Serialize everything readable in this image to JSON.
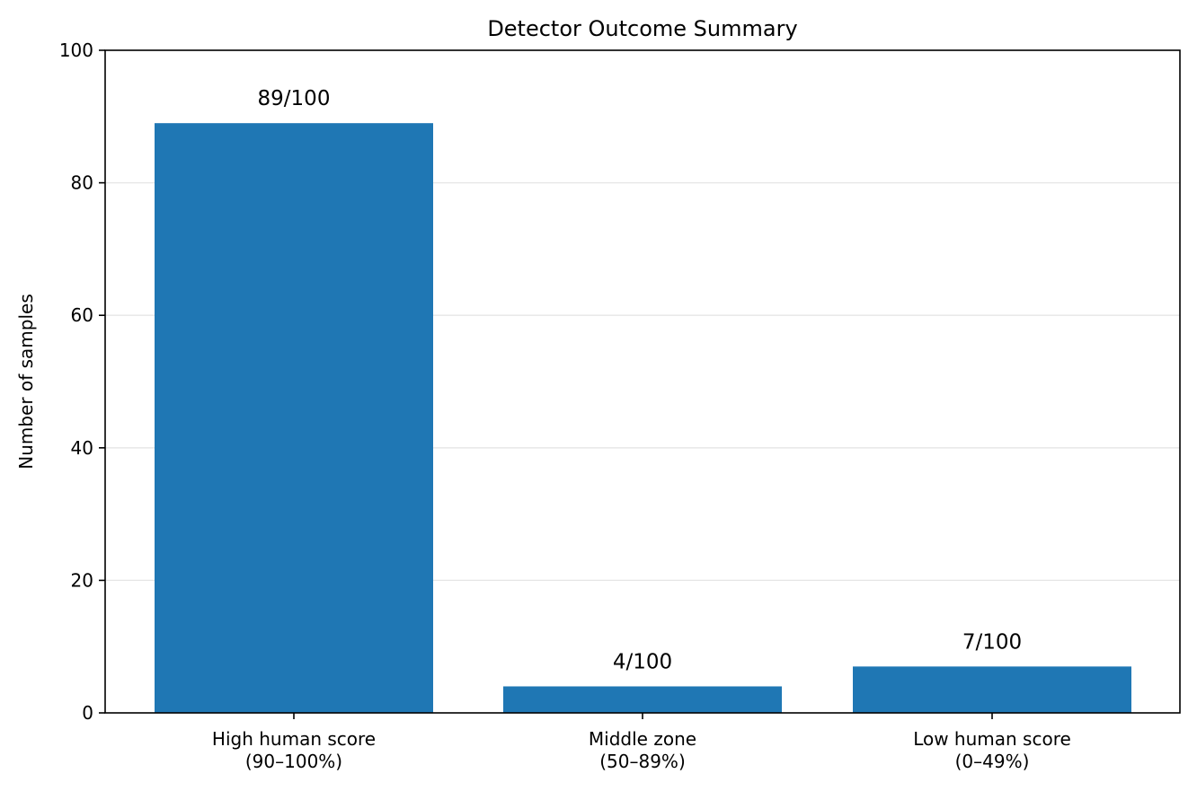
{
  "chart_data": {
    "type": "bar",
    "title": "Detector Outcome Summary",
    "xlabel": "",
    "ylabel": "Number of samples",
    "ylim": [
      0,
      100
    ],
    "yticks": [
      0,
      20,
      40,
      60,
      80,
      100
    ],
    "grid": "y",
    "color": "#1f77b4",
    "categories": [
      [
        "High human score",
        "(90–100%)"
      ],
      [
        "Middle zone",
        "(50–89%)"
      ],
      [
        "Low human score",
        "(0–49%)"
      ]
    ],
    "values": [
      89,
      4,
      7
    ],
    "data_labels": [
      "89/100",
      "4/100",
      "7/100"
    ]
  }
}
